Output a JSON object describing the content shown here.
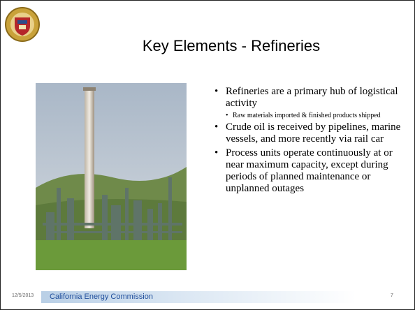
{
  "header": {
    "title": "Key Elements - Refineries"
  },
  "bullets": [
    {
      "text": "Refineries are a primary hub of logistical activity",
      "sub": [
        "Raw materials imported & finished products shipped"
      ]
    },
    {
      "text": "Crude oil is received by pipelines, marine vessels, and more recently via rail car"
    },
    {
      "text": "Process units operate continuously at or near maximum capacity, except during periods of planned maintenance or unplanned outages"
    }
  ],
  "footer": {
    "date": "12/5/2013",
    "organization": "California Energy Commission",
    "page": "7"
  }
}
